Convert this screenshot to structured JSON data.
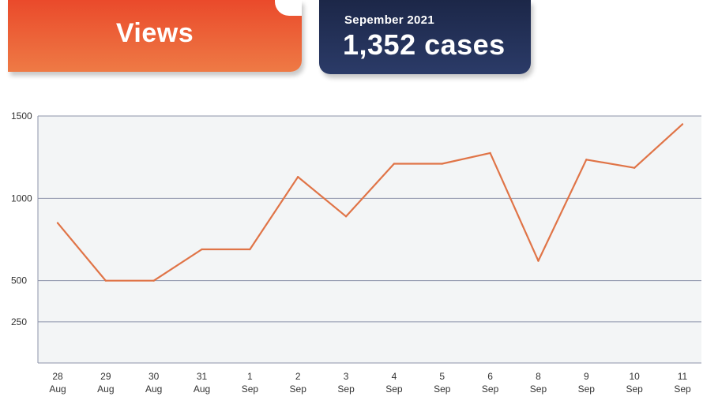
{
  "banner": {
    "title": "Views"
  },
  "summary": {
    "period": "Sepember 2021",
    "value": "1,352 cases"
  },
  "colors": {
    "line": "#e07447",
    "plot_bg": "#f3f5f6",
    "grid": "#8d93aa",
    "orange": "#ea4a2b",
    "navy": "#1c2748"
  },
  "chart_data": {
    "type": "line",
    "categories": [
      [
        "28",
        "Aug"
      ],
      [
        "29",
        "Aug"
      ],
      [
        "30",
        "Aug"
      ],
      [
        "31",
        "Aug"
      ],
      [
        "1",
        "Sep"
      ],
      [
        "2",
        "Sep"
      ],
      [
        "3",
        "Sep"
      ],
      [
        "4",
        "Sep"
      ],
      [
        "5",
        "Sep"
      ],
      [
        "6",
        "Sep"
      ],
      [
        "8",
        "Sep"
      ],
      [
        "9",
        "Sep"
      ],
      [
        "10",
        "Sep"
      ],
      [
        "11",
        "Sep"
      ]
    ],
    "values": [
      850,
      500,
      500,
      690,
      690,
      1130,
      890,
      1210,
      1210,
      1275,
      620,
      1235,
      1185,
      1450
    ],
    "yticks": [
      250,
      500,
      1000,
      1500
    ],
    "ylim": [
      0,
      1500
    ],
    "grid": true,
    "title": "",
    "xlabel": "",
    "ylabel": ""
  }
}
